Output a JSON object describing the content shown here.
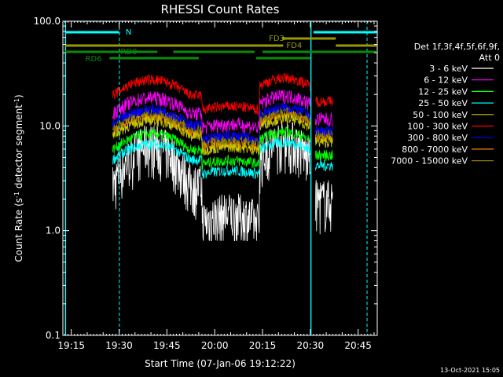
{
  "chart_data": {
    "type": "line",
    "title": "RHESSI Count Rates",
    "xlabel": "Start Time (07-Jan-06 19:12:22)",
    "ylabel_parts": {
      "main": "Count Rate (s",
      "sup1": "-1",
      "mid": " detector segment",
      "sup2": "-1",
      "end": ")"
    },
    "y_scale": "log",
    "ylim": [
      0.1,
      100.0
    ],
    "yticks": [
      "0.1",
      "1.0",
      "10.0",
      "100.0"
    ],
    "xlim_minutes_label": [
      "19:12:22",
      "20:51"
    ],
    "xticks": [
      "19:15",
      "19:30",
      "19:45",
      "20:00",
      "20:15",
      "20:30",
      "20:45"
    ],
    "legend_header": [
      "Det 1f,3f,4f,5f,6f,9f,",
      "Att 0"
    ],
    "legend_position": "right",
    "series": [
      {
        "name": "3 - 6 keV",
        "color": "#ffffff",
        "level": 4.2
      },
      {
        "name": "6 - 12 keV",
        "color": "#ff00ff",
        "level": 15.5
      },
      {
        "name": "12 - 25 keV",
        "color": "#00ff00",
        "level": 7.0
      },
      {
        "name": "25 - 50 keV",
        "color": "#00ffff",
        "level": 5.6
      },
      {
        "name": "50 - 100 keV",
        "color": "#c8c800",
        "level": 9.4
      },
      {
        "name": "100 - 300 keV",
        "color": "#ff0000",
        "level": 23.0
      },
      {
        "name": "300 - 800 keV",
        "color": "#0000ff",
        "level": 12.0
      },
      {
        "name": "800 - 7000 keV",
        "color": "#ff8c00",
        "level": 10.2
      },
      {
        "name": "7000 - 15000 keV",
        "color": "#8b7d00",
        "level": 11.0
      }
    ],
    "flags": [
      {
        "label": "N",
        "color": "#00ffff"
      },
      {
        "label": "FD3",
        "color": "#999900"
      },
      {
        "label": "FD4",
        "color": "#999900"
      },
      {
        "label": "RD0",
        "color": "#0a8a0a"
      },
      {
        "label": "RD6",
        "color": "#0a8a0a"
      }
    ],
    "timestamp": "13-Oct-2021 15:05"
  }
}
